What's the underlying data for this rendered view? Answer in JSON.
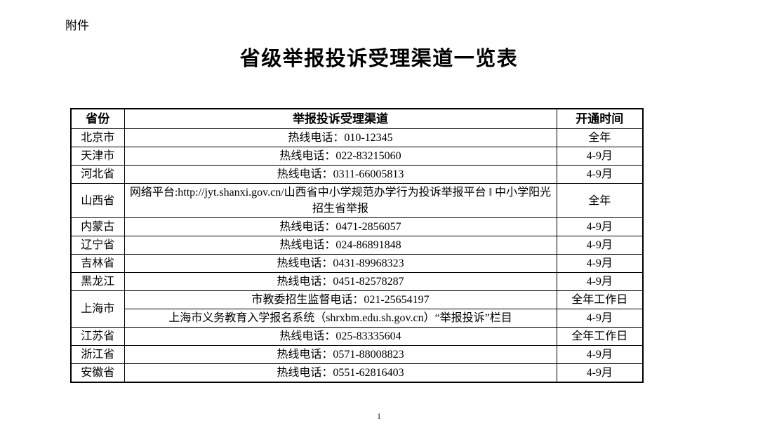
{
  "page": {
    "attachment_label": "附件",
    "title": "省级举报投诉受理渠道一览表",
    "page_number": "1"
  },
  "colors": {
    "text": "#000000",
    "border": "#000000",
    "background": "#ffffff"
  },
  "table": {
    "headers": [
      "省份",
      "举报投诉受理渠道",
      "开通时间"
    ],
    "rows": [
      {
        "province": "北京市",
        "channel": "热线电话：010-12345",
        "time": "全年"
      },
      {
        "province": "天津市",
        "channel": "热线电话：022-83215060",
        "time": "4-9月"
      },
      {
        "province": "河北省",
        "channel": "热线电话：0311-66005813",
        "time": "4-9月"
      },
      {
        "province": "山西省",
        "channel": "网络平台:http://jyt.shanxi.gov.cn/山西省中小学规范办学行为投诉举报平台 ‖ 中小学阳光招生省举报",
        "time": "全年"
      },
      {
        "province": "内蒙古",
        "channel": "热线电话：0471-2856057",
        "time": "4-9月"
      },
      {
        "province": "辽宁省",
        "channel": "热线电话：024-86891848",
        "time": "4-9月"
      },
      {
        "province": "吉林省",
        "channel": "热线电话：0431-89968323",
        "time": "4-9月"
      },
      {
        "province": "黑龙江",
        "channel": "热线电话：0451-82578287",
        "time": "4-9月"
      },
      {
        "province": "上海市",
        "channel": "市教委招生监督电话：021-25654197",
        "time": "全年工作日"
      },
      {
        "province": "",
        "channel": "上海市义务教育入学报名系统（shrxbm.edu.sh.gov.cn）“举报投诉”栏目",
        "time": "4-9月"
      },
      {
        "province": "江苏省",
        "channel": "热线电话：025-83335604",
        "time": "全年工作日"
      },
      {
        "province": "浙江省",
        "channel": "热线电话：0571-88008823",
        "time": "4-9月"
      },
      {
        "province": "安徽省",
        "channel": "热线电话：0551-62816403",
        "time": "4-9月"
      }
    ]
  }
}
